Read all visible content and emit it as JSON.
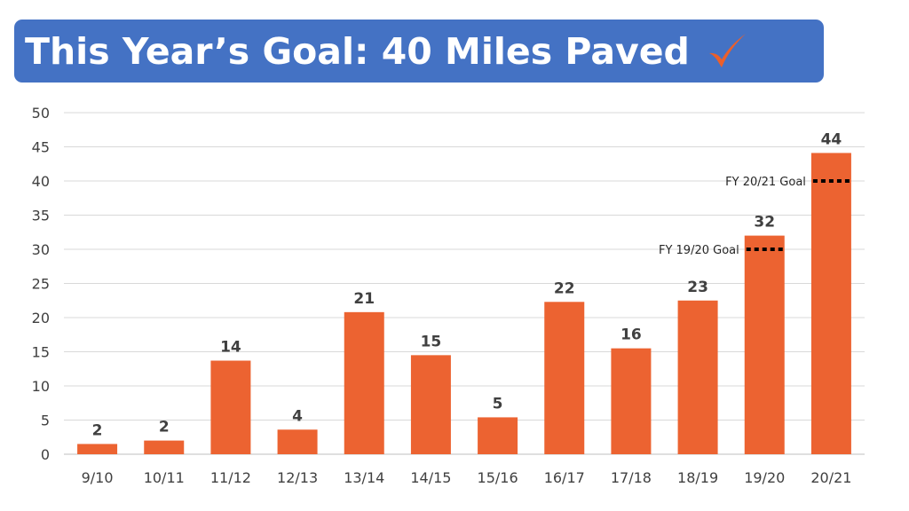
{
  "title": {
    "text": "This Year’s Goal: 40 Miles Paved",
    "icon": "checkmark-icon",
    "icon_color": "#ec5f2a",
    "background": "#4472c4"
  },
  "chart_data": {
    "type": "bar",
    "categories": [
      "9/10",
      "10/11",
      "11/12",
      "12/13",
      "13/14",
      "14/15",
      "15/16",
      "16/17",
      "17/18",
      "18/19",
      "19/20",
      "20/21"
    ],
    "values": [
      1.5,
      2,
      13.7,
      3.6,
      20.8,
      14.5,
      5.4,
      22.3,
      15.5,
      22.5,
      32,
      44.1
    ],
    "data_labels": [
      "2",
      "2",
      "14",
      "4",
      "21",
      "15",
      "5",
      "22",
      "16",
      "23",
      "32",
      "44"
    ],
    "ylim": [
      0,
      50
    ],
    "yticks": [
      0,
      5,
      10,
      15,
      20,
      25,
      30,
      35,
      40,
      45,
      50
    ],
    "grid": true,
    "bar_color": "#ec6331",
    "title": "",
    "xlabel": "",
    "ylabel": "",
    "annotations": [
      {
        "text": "FY 19/20 Goal",
        "value": 30,
        "category": "19/20",
        "style": "dotted"
      },
      {
        "text": "FY 20/21 Goal",
        "value": 40,
        "category": "20/21",
        "style": "dotted"
      }
    ]
  }
}
